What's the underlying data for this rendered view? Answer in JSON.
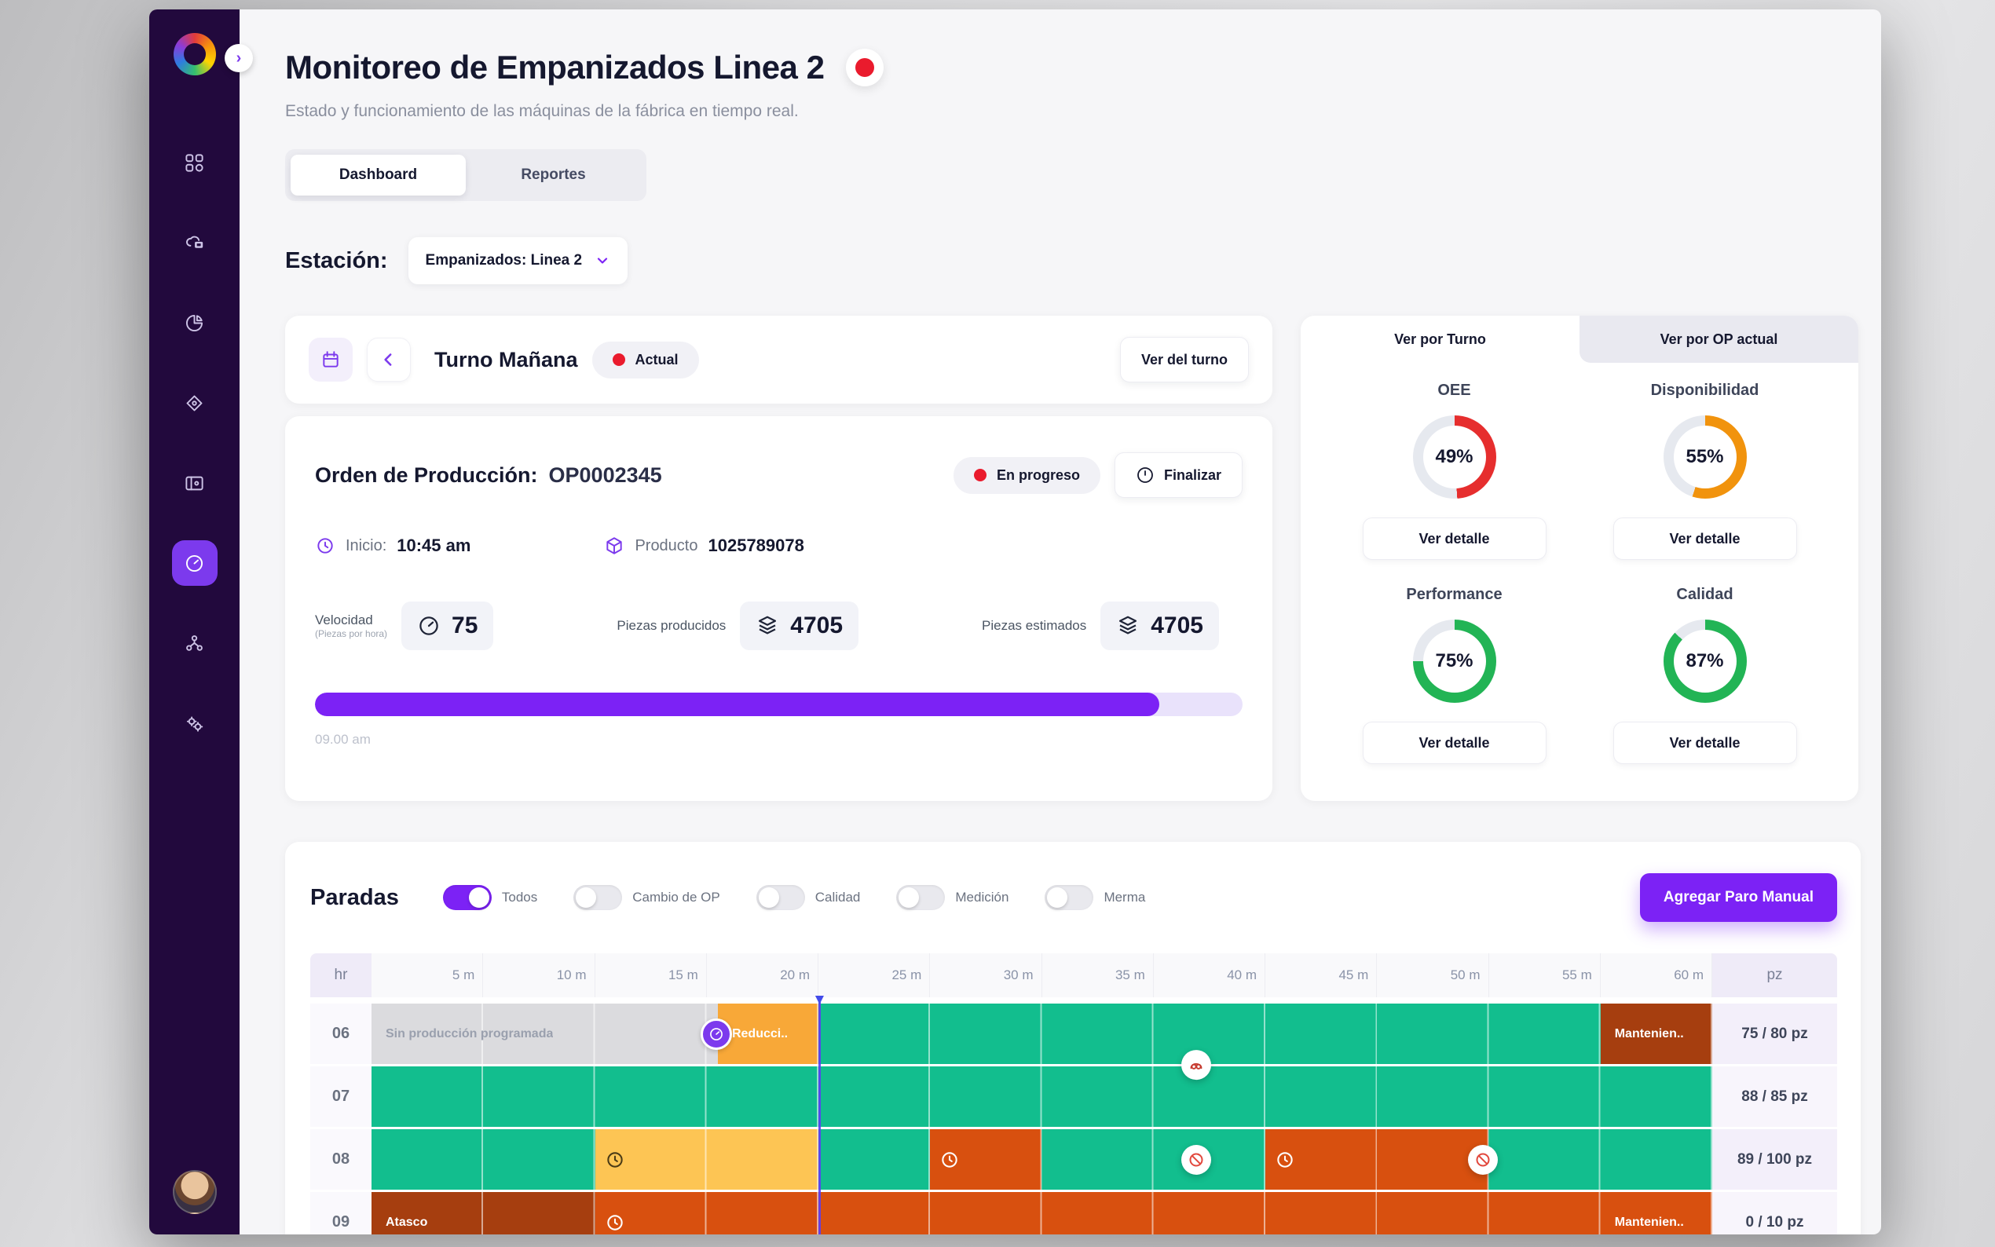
{
  "header": {
    "title": "Monitoreo de Empanizados Linea 2",
    "subtitle": "Estado y funcionamiento de las máquinas de la fábrica en tiempo real.",
    "tabs": [
      {
        "label": "Dashboard",
        "active": true
      },
      {
        "label": "Reportes",
        "active": false
      }
    ],
    "station_label": "Estación:",
    "station_value": "Empanizados: Linea 2"
  },
  "sidebar": {
    "items": [
      {
        "icon": "apps-grid-icon",
        "active": false
      },
      {
        "icon": "cloud-screen-icon",
        "active": false
      },
      {
        "icon": "pie-chart-icon",
        "active": false
      },
      {
        "icon": "diamond-eye-icon",
        "active": false
      },
      {
        "icon": "kanban-card-icon",
        "active": false
      },
      {
        "icon": "gauge-icon",
        "active": true
      },
      {
        "icon": "team-network-icon",
        "active": false
      },
      {
        "icon": "gears-icon",
        "active": false
      }
    ]
  },
  "shift_card": {
    "title": "Turno Mañana",
    "status_badge": "Actual",
    "view_button": "Ver del turno"
  },
  "order_card": {
    "order_label": "Orden de Producción:",
    "order_value": "OP0002345",
    "status_badge": "En progreso",
    "finish_button": "Finalizar",
    "start_label": "Inicio:",
    "start_value": "10:45 am",
    "product_label": "Producto",
    "product_value": "1025789078",
    "speed_label": "Velocidad",
    "speed_sublabel": "(Piezas por hora)",
    "speed_value": "75",
    "produced_label": "Piezas producidos",
    "produced_value": "4705",
    "estimated_label": "Piezas estimados",
    "estimated_value": "4705",
    "progress_pct": 91,
    "progress_start_time": "09.00 am"
  },
  "kpi_panel": {
    "tabs": [
      {
        "label": "Ver por Turno",
        "active": true
      },
      {
        "label": "Ver por OP actual",
        "active": false
      }
    ],
    "detail_button": "Ver detalle",
    "track_color": "#E6E9EF",
    "kpis": [
      {
        "label": "OEE",
        "value": 49,
        "display": "49%",
        "color": "#E62E2E"
      },
      {
        "label": "Disponibilidad",
        "value": 55,
        "display": "55%",
        "color": "#F1930D"
      },
      {
        "label": "Performance",
        "value": 75,
        "display": "75%",
        "color": "#22B455"
      },
      {
        "label": "Calidad",
        "value": 87,
        "display": "87%",
        "color": "#22B455"
      }
    ]
  },
  "paradas": {
    "title": "Paradas",
    "toggles": [
      {
        "label": "Todos",
        "on": true
      },
      {
        "label": "Cambio de OP",
        "on": false
      },
      {
        "label": "Calidad",
        "on": false
      },
      {
        "label": "Medición",
        "on": false
      },
      {
        "label": "Merma",
        "on": false
      }
    ],
    "add_button": "Agregar Paro Manual"
  },
  "timeline": {
    "hr_header": "hr",
    "pz_header": "pz",
    "minute_headers": [
      "5 m",
      "10 m",
      "15 m",
      "20 m",
      "25 m",
      "30 m",
      "35 m",
      "40 m",
      "45 m",
      "50 m",
      "55 m",
      "60 m"
    ],
    "marker_minute": 20,
    "colors": {
      "running": "#12BE8E",
      "slow": "#FDC554",
      "stop": "#D8500F",
      "jam": "#A63E0F",
      "maintenance": "#A63E0F",
      "reduced": "#F8A838",
      "idle": "#DBDBDE"
    },
    "rows": [
      {
        "hour": "06",
        "pz": "75 / 80 pz",
        "segments": [
          {
            "kind": "idle",
            "units": 3.1,
            "label": "Sin producción programada"
          },
          {
            "kind": "reduced",
            "units": 0.9,
            "label": "Reducci..",
            "icon": "gauge-badge-icon"
          },
          {
            "kind": "running",
            "units": 7
          },
          {
            "kind": "maintenance",
            "units": 1,
            "label": "Mantenien.."
          }
        ],
        "overlays": []
      },
      {
        "hour": "07",
        "pz": "88 / 85 pz",
        "segments": [
          {
            "kind": "running",
            "units": 12
          }
        ],
        "overlays": [
          {
            "icon": "pretzel-icon",
            "pos_pct": 61.5,
            "v": "top"
          }
        ]
      },
      {
        "hour": "08",
        "pz": "89 / 100 pz",
        "segments": [
          {
            "kind": "running",
            "units": 2
          },
          {
            "kind": "slow",
            "units": 2,
            "icon": "clock-dark-icon"
          },
          {
            "kind": "running",
            "units": 1
          },
          {
            "kind": "stop",
            "units": 1,
            "icon": "clock-white-icon"
          },
          {
            "kind": "running",
            "units": 2
          },
          {
            "kind": "stop",
            "units": 2,
            "icon": "clock-white-icon"
          },
          {
            "kind": "running",
            "units": 2
          }
        ],
        "overlays": [
          {
            "icon": "prohibited-icon",
            "pos_pct": 61.5,
            "v": "mid"
          },
          {
            "icon": "prohibited-icon",
            "pos_pct": 82.9,
            "v": "mid"
          }
        ]
      },
      {
        "hour": "09",
        "pz": "0 / 10 pz",
        "segments": [
          {
            "kind": "jam",
            "units": 2,
            "label": "Atasco"
          },
          {
            "kind": "stop",
            "units": 9,
            "icon": "clock-white-icon"
          },
          {
            "kind": "stop",
            "units": 1,
            "label": "Mantenien.."
          }
        ],
        "overlays": []
      }
    ]
  },
  "colors": {
    "accent_purple": "#7C22F5",
    "sidebar_bg": "#22093D",
    "record_red": "#EA1B2D"
  }
}
